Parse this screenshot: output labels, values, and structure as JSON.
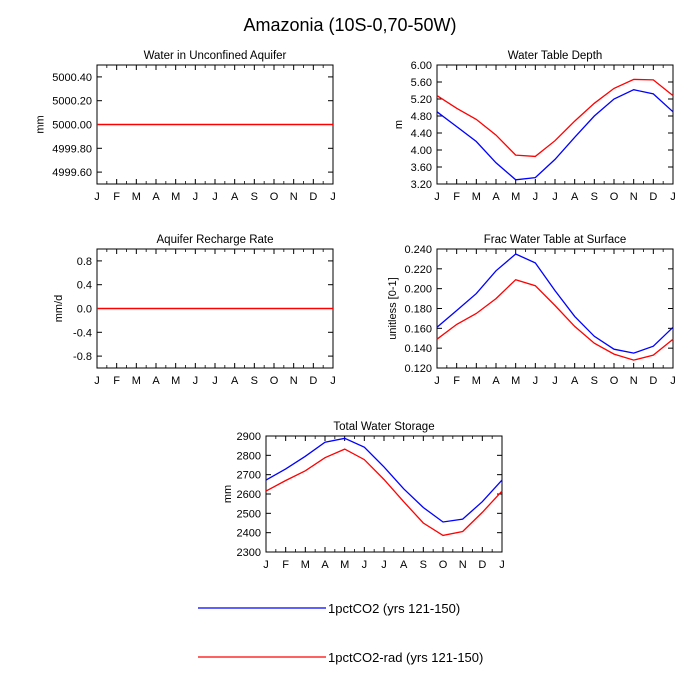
{
  "page": {
    "title": "Amazonia (10S-0,70-50W)"
  },
  "months": [
    "J",
    "F",
    "M",
    "A",
    "M",
    "J",
    "J",
    "A",
    "S",
    "O",
    "N",
    "D",
    "J"
  ],
  "series_styles": [
    {
      "name": "1pctCO2 (yrs 121-150)",
      "color": "#0000ff"
    },
    {
      "name": "1pctCO2-rad (yrs 121-150)",
      "color": "#ff0000"
    }
  ],
  "chart_data": [
    {
      "id": "water-unconfined-aquifer",
      "type": "line",
      "title": "Water in Unconfined Aquifer",
      "ylabel": "mm",
      "ylim": [
        4999.5,
        5000.5
      ],
      "yticks": [
        "5000.40",
        "5000.20",
        "5000.00",
        "4999.80",
        "4999.60"
      ],
      "ytick_values": [
        5000.4,
        5000.2,
        5000.0,
        4999.8,
        4999.6
      ],
      "series": [
        {
          "name": "1pctCO2 (yrs 121-150)",
          "values": [
            5000,
            5000,
            5000,
            5000,
            5000,
            5000,
            5000,
            5000,
            5000,
            5000,
            5000,
            5000,
            5000
          ]
        },
        {
          "name": "1pctCO2-rad (yrs 121-150)",
          "values": [
            5000,
            5000,
            5000,
            5000,
            5000,
            5000,
            5000,
            5000,
            5000,
            5000,
            5000,
            5000,
            5000
          ]
        }
      ]
    },
    {
      "id": "water-table-depth",
      "type": "line",
      "title": "Water Table Depth",
      "ylabel": "m",
      "ylim": [
        3.2,
        6.0
      ],
      "yticks": [
        "6.00",
        "5.60",
        "5.20",
        "4.80",
        "4.40",
        "4.00",
        "3.60",
        "3.20"
      ],
      "ytick_values": [
        6.0,
        5.6,
        5.2,
        4.8,
        4.4,
        4.0,
        3.6,
        3.2
      ],
      "series": [
        {
          "name": "1pctCO2 (yrs 121-150)",
          "values": [
            4.9,
            4.55,
            4.2,
            3.7,
            3.3,
            3.35,
            3.78,
            4.3,
            4.8,
            5.2,
            5.42,
            5.32,
            4.9
          ]
        },
        {
          "name": "1pctCO2-rad (yrs 121-150)",
          "values": [
            5.28,
            4.98,
            4.72,
            4.35,
            3.88,
            3.85,
            4.22,
            4.68,
            5.1,
            5.45,
            5.66,
            5.65,
            5.28
          ]
        }
      ]
    },
    {
      "id": "aquifer-recharge-rate",
      "type": "line",
      "title": "Aquifer Recharge Rate",
      "ylabel": "mm/d",
      "ylim": [
        -1.0,
        1.0
      ],
      "yticks": [
        "0.8",
        "0.4",
        "0.0",
        "-0.4",
        "-0.8"
      ],
      "ytick_values": [
        0.8,
        0.4,
        0.0,
        -0.4,
        -0.8
      ],
      "series": [
        {
          "name": "1pctCO2 (yrs 121-150)",
          "values": [
            0,
            0,
            0,
            0,
            0,
            0,
            0,
            0,
            0,
            0,
            0,
            0,
            0
          ]
        },
        {
          "name": "1pctCO2-rad (yrs 121-150)",
          "values": [
            0,
            0,
            0,
            0,
            0,
            0,
            0,
            0,
            0,
            0,
            0,
            0,
            0
          ]
        }
      ]
    },
    {
      "id": "frac-water-table-surface",
      "type": "line",
      "title": "Frac Water Table at Surface",
      "ylabel": "unitless [0-1]",
      "ylim": [
        0.12,
        0.24
      ],
      "yticks": [
        "0.240",
        "0.220",
        "0.200",
        "0.180",
        "0.160",
        "0.140",
        "0.120"
      ],
      "ytick_values": [
        0.24,
        0.22,
        0.2,
        0.18,
        0.16,
        0.14,
        0.12
      ],
      "series": [
        {
          "name": "1pctCO2 (yrs 121-150)",
          "values": [
            0.161,
            0.178,
            0.195,
            0.218,
            0.235,
            0.226,
            0.198,
            0.172,
            0.152,
            0.139,
            0.135,
            0.142,
            0.161
          ]
        },
        {
          "name": "1pctCO2-rad (yrs 121-150)",
          "values": [
            0.149,
            0.164,
            0.175,
            0.19,
            0.209,
            0.203,
            0.183,
            0.162,
            0.145,
            0.134,
            0.128,
            0.133,
            0.149
          ]
        }
      ]
    },
    {
      "id": "total-water-storage",
      "type": "line",
      "title": "Total Water Storage",
      "ylabel": "mm",
      "ylim": [
        2300,
        2900
      ],
      "yticks": [
        "2900",
        "2800",
        "2700",
        "2600",
        "2500",
        "2400",
        "2300"
      ],
      "ytick_values": [
        2900,
        2800,
        2700,
        2600,
        2500,
        2400,
        2300
      ],
      "series": [
        {
          "name": "1pctCO2 (yrs 121-150)",
          "values": [
            2672,
            2730,
            2795,
            2868,
            2888,
            2842,
            2740,
            2627,
            2530,
            2455,
            2470,
            2560,
            2672
          ]
        },
        {
          "name": "1pctCO2-rad (yrs 121-150)",
          "values": [
            2615,
            2670,
            2720,
            2788,
            2832,
            2778,
            2675,
            2560,
            2450,
            2386,
            2406,
            2505,
            2615
          ]
        }
      ]
    }
  ],
  "legend": {
    "placement": "bottom",
    "entries": [
      {
        "label": "1pctCO2 (yrs 121-150)",
        "color": "#0000ff"
      },
      {
        "label": "1pctCO2-rad (yrs 121-150)",
        "color": "#ff0000"
      }
    ]
  }
}
